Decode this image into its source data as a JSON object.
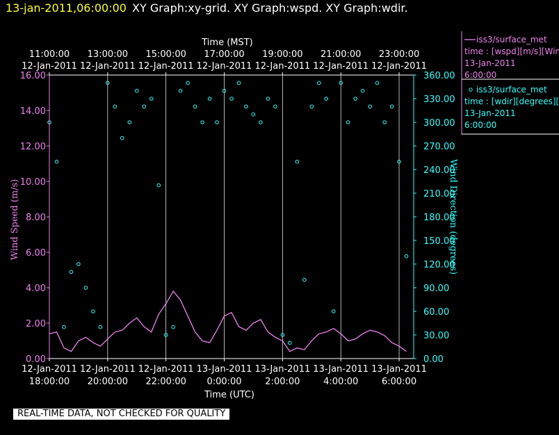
{
  "header": {
    "time": "13-jan-2011,06:00:00",
    "graphs": "XY Graph:xy-grid.  XY Graph:wspd.  XY Graph:wdir."
  },
  "footer": "REAL-TIME DATA, NOT CHECKED FOR QUALITY",
  "legend": [
    {
      "title": "iss3/surface_met",
      "line2": "time : [wspd][m/s][Wind",
      "line3": "13-Jan-2011",
      "line4": "6:00:00",
      "symbol": "line",
      "color": "#ee82ee"
    },
    {
      "title": "iss3/surface_met",
      "line2": "time : [wdir][degrees][W",
      "line3": "13-Jan-2011",
      "line4": "6:00:00",
      "symbol": "circle",
      "color": "#33ffff"
    }
  ],
  "chart_data": {
    "type": "scatter",
    "x_top": {
      "label": "Time (MST)",
      "ticks": [
        {
          "t": 0,
          "time": "11:00:00",
          "date": "12-Jan-2011"
        },
        {
          "t": 2,
          "time": "13:00:00",
          "date": "12-Jan-2011"
        },
        {
          "t": 4,
          "time": "15:00:00",
          "date": "12-Jan-2011"
        },
        {
          "t": 6,
          "time": "17:00:00",
          "date": "12-Jan-2011"
        },
        {
          "t": 8,
          "time": "19:00:00",
          "date": "12-Jan-2011"
        },
        {
          "t": 10,
          "time": "21:00:00",
          "date": "12-Jan-2011"
        },
        {
          "t": 12,
          "time": "23:00:00",
          "date": "12-Jan-2011"
        }
      ]
    },
    "x_bottom": {
      "label": "Time (UTC)",
      "ticks": [
        {
          "t": 0,
          "date": "12-Jan-2011",
          "time": "18:00:00"
        },
        {
          "t": 2,
          "date": "12-Jan-2011",
          "time": "20:00:00"
        },
        {
          "t": 4,
          "date": "12-Jan-2011",
          "time": "22:00:00"
        },
        {
          "t": 6,
          "date": "13-Jan-2011",
          "time": "0:00:00"
        },
        {
          "t": 8,
          "date": "13-Jan-2011",
          "time": "2:00:00"
        },
        {
          "t": 10,
          "date": "13-Jan-2011",
          "time": "4:00:00"
        },
        {
          "t": 12,
          "date": "13-Jan-2011",
          "time": "6:00:00"
        }
      ],
      "range_hours": [
        0,
        12.5
      ]
    },
    "y_left": {
      "label": "Wind Speed (m/s)",
      "ylim": [
        0,
        16
      ],
      "ticks": [
        "0.00",
        "2.00",
        "4.00",
        "6.00",
        "8.00",
        "10.00",
        "12.00",
        "14.00",
        "16.00"
      ],
      "color": "#ee82ee"
    },
    "y_right": {
      "label": "Wind Direction (degrees)",
      "ylim": [
        0,
        360
      ],
      "ticks": [
        "0.00",
        "30.00",
        "60.00",
        "90.00",
        "120.00",
        "150.00",
        "180.00",
        "210.00",
        "240.00",
        "270.00",
        "300.00",
        "330.00",
        "360.00"
      ],
      "color": "#33ffff"
    },
    "grid_hours": [
      2,
      4,
      6,
      8,
      10,
      12
    ],
    "series": [
      {
        "name": "iss3/surface_met",
        "axis": "left",
        "style": "line",
        "color": "#ee82ee",
        "x": [
          0,
          0.25,
          0.5,
          0.75,
          1.0,
          1.25,
          1.5,
          1.75,
          2.0,
          2.25,
          2.5,
          2.75,
          3.0,
          3.25,
          3.5,
          3.75,
          4.0,
          4.25,
          4.5,
          4.75,
          5.0,
          5.25,
          5.5,
          5.75,
          6.0,
          6.25,
          6.5,
          6.75,
          7.0,
          7.25,
          7.5,
          7.75,
          8.0,
          8.25,
          8.5,
          8.75,
          9.0,
          9.25,
          9.5,
          9.75,
          10.0,
          10.25,
          10.5,
          10.75,
          11.0,
          11.25,
          11.5,
          11.75,
          12.0,
          12.25
        ],
        "y": [
          1.4,
          1.5,
          0.6,
          0.4,
          1.0,
          1.2,
          0.9,
          0.7,
          1.1,
          1.5,
          1.6,
          2.0,
          2.3,
          1.8,
          1.5,
          2.5,
          3.1,
          3.8,
          3.3,
          2.4,
          1.5,
          1.0,
          0.9,
          1.6,
          2.4,
          2.6,
          1.8,
          1.6,
          2.0,
          2.2,
          1.5,
          1.2,
          1.0,
          0.4,
          0.6,
          0.5,
          1.0,
          1.4,
          1.5,
          1.7,
          1.4,
          1.0,
          1.1,
          1.4,
          1.6,
          1.5,
          1.3,
          0.9,
          0.7,
          0.4
        ]
      },
      {
        "name": "iss3/surface_met",
        "axis": "right",
        "style": "circle",
        "color": "#33ffff",
        "x": [
          0,
          0.25,
          0.5,
          0.75,
          1.0,
          1.25,
          1.5,
          1.75,
          2.0,
          2.25,
          2.5,
          2.75,
          3.0,
          3.25,
          3.5,
          3.75,
          4.0,
          4.25,
          4.5,
          4.75,
          5.0,
          5.25,
          5.5,
          5.75,
          6.0,
          6.25,
          6.5,
          6.75,
          7.0,
          7.25,
          7.5,
          7.75,
          8.0,
          8.25,
          8.5,
          8.75,
          9.0,
          9.25,
          9.5,
          9.75,
          10.0,
          10.25,
          10.5,
          10.75,
          11.0,
          11.25,
          11.5,
          11.75,
          12.0,
          12.25
        ],
        "y": [
          300,
          250,
          40,
          110,
          120,
          90,
          60,
          40,
          350,
          320,
          280,
          300,
          340,
          320,
          330,
          220,
          30,
          40,
          340,
          350,
          320,
          300,
          330,
          300,
          340,
          330,
          350,
          320,
          310,
          300,
          330,
          320,
          30,
          20,
          250,
          100,
          320,
          350,
          330,
          60,
          350,
          300,
          330,
          340,
          320,
          350,
          300,
          320,
          250,
          130
        ]
      }
    ]
  }
}
